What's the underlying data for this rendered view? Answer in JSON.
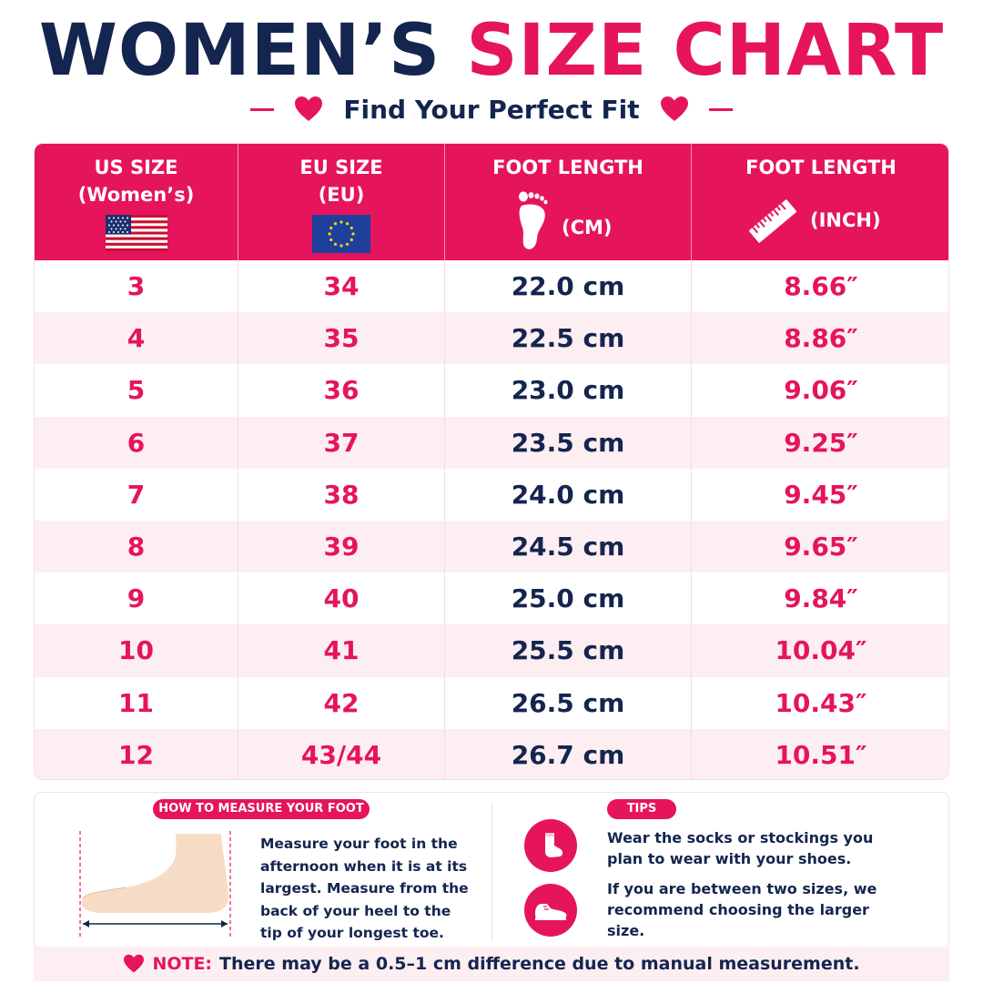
{
  "header": {
    "title_part1": "WOMEN’S",
    "title_part2": "SIZE CHART",
    "subtitle": "Find Your Perfect Fit"
  },
  "table": {
    "columns": [
      {
        "line1": "US SIZE",
        "line2": "(Women’s)",
        "icon": "us-flag-icon"
      },
      {
        "line1": "EU SIZE",
        "line2": "(EU)",
        "icon": "eu-flag-icon"
      },
      {
        "line1": "FOOT LENGTH",
        "line2": "(CM)",
        "icon": "footprint-icon"
      },
      {
        "line1": "FOOT LENGTH",
        "line2": "(INCH)",
        "icon": "ruler-icon"
      }
    ],
    "rows": [
      {
        "us": "3",
        "eu": "34",
        "cm": "22.0 cm",
        "inch": "8.66″"
      },
      {
        "us": "4",
        "eu": "35",
        "cm": "22.5 cm",
        "inch": "8.86″"
      },
      {
        "us": "5",
        "eu": "36",
        "cm": "23.0 cm",
        "inch": "9.06″"
      },
      {
        "us": "6",
        "eu": "37",
        "cm": "23.5 cm",
        "inch": "9.25″"
      },
      {
        "us": "7",
        "eu": "38",
        "cm": "24.0 cm",
        "inch": "9.45″"
      },
      {
        "us": "8",
        "eu": "39",
        "cm": "24.5 cm",
        "inch": "9.65″"
      },
      {
        "us": "9",
        "eu": "40",
        "cm": "25.0 cm",
        "inch": "9.84″"
      },
      {
        "us": "10",
        "eu": "41",
        "cm": "25.5 cm",
        "inch": "10.04″"
      },
      {
        "us": "11",
        "eu": "42",
        "cm": "26.5 cm",
        "inch": "10.43″"
      },
      {
        "us": "12",
        "eu": "43/44",
        "cm": "26.7 cm",
        "inch": "10.51″"
      }
    ]
  },
  "measure": {
    "heading": "HOW TO MEASURE YOUR FOOT",
    "text": "Measure your foot in the afternoon when it is at its largest. Measure from the back of your heel to the tip of your longest toe."
  },
  "tips": {
    "heading": "TIPS",
    "items": [
      {
        "icon": "sock-icon",
        "text": "Wear the socks or stockings you plan to wear with your shoes."
      },
      {
        "icon": "shoe-icon",
        "text": "If you are between two sizes, we recommend choosing the larger size."
      }
    ]
  },
  "note": {
    "label": "NOTE:",
    "text": "There may be a 0.5–1 cm difference due to manual measurement."
  },
  "colors": {
    "navy": "#14254f",
    "pink": "#e5145d",
    "row_alt": "#fdeef2"
  }
}
